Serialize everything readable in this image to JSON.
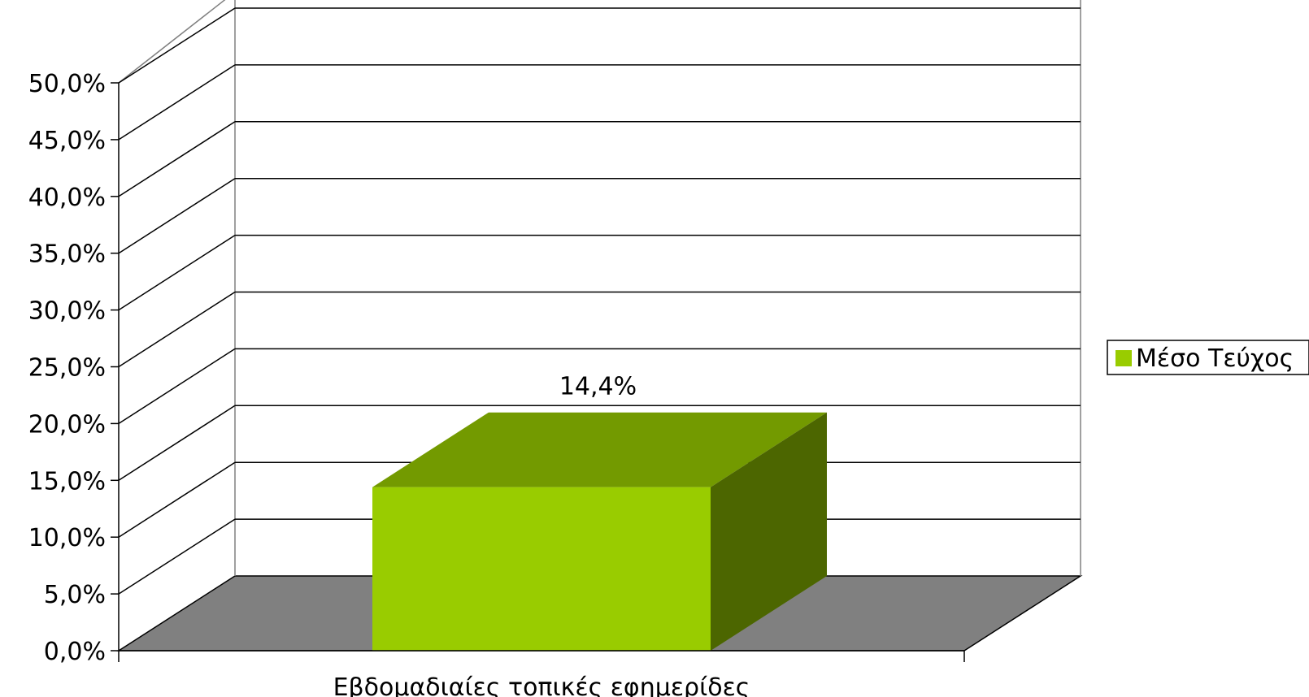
{
  "chart_data": {
    "type": "bar",
    "categories": [
      "Εβδομαδιαίες τοπικές εφημερίδες"
    ],
    "series": [
      {
        "name": "Μέσο Τεύχος",
        "values": [
          14.4
        ],
        "data_labels": [
          "14,4%"
        ]
      }
    ],
    "ylim": [
      0,
      50
    ],
    "y_ticks": [
      0,
      5,
      10,
      15,
      20,
      25,
      30,
      35,
      40,
      45,
      50
    ],
    "y_tick_labels": [
      "0,0%",
      "5,0%",
      "10,0%",
      "15,0%",
      "20,0%",
      "25,0%",
      "30,0%",
      "35,0%",
      "40,0%",
      "45,0%",
      "50,0%"
    ],
    "three_d": true,
    "grid": true,
    "legend_position": "right",
    "colors": {
      "bar_front": "#99cc00",
      "bar_top": "#739a00",
      "bar_side": "#4c6600",
      "floor": "#808080",
      "grid": "#000000",
      "wall_border": "#808080"
    }
  }
}
